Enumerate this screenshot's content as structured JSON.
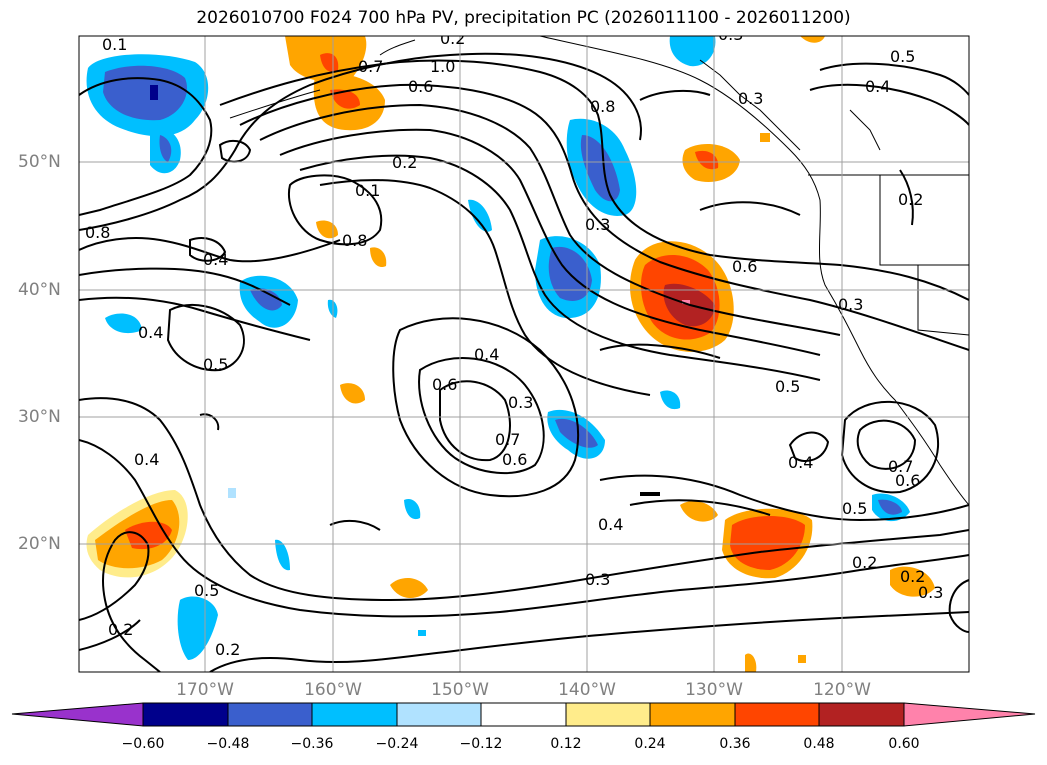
{
  "title": "2026010700 F024 700 hPa PV, precipitation PC (2026011100 - 2026011200)",
  "lat_labels": [
    "50°N",
    "40°N",
    "30°N",
    "20°N"
  ],
  "lon_labels": [
    "170°W",
    "160°W",
    "150°W",
    "140°W",
    "130°W",
    "120°W"
  ],
  "colorbar": {
    "ticks": [
      "−0.60",
      "−0.48",
      "−0.36",
      "−0.24",
      "−0.12",
      "0.12",
      "0.24",
      "0.36",
      "0.48",
      "0.60"
    ],
    "colors": [
      "#9932cc",
      "#00008b",
      "#3a5fcd",
      "#00bfff",
      "#b0e2ff",
      "#ffffff",
      "#ffec8b",
      "#ffa500",
      "#ff4500",
      "#b22222",
      "#ff82ab"
    ]
  },
  "contour_labels": [
    "0.1",
    "1.0",
    "0.7",
    "0.6",
    "0.3",
    "0.5",
    "0.4",
    "0.8",
    "0.2",
    "0.1",
    "0.8",
    "0.8",
    "0.2",
    "0.3",
    "0.6",
    "0.4",
    "0.4",
    "0.5",
    "0.3",
    "0.6",
    "0.4",
    "0.3",
    "0.7",
    "0.6",
    "0.5",
    "0.4",
    "0.4",
    "0.6",
    "0.7",
    "0.5",
    "0.4",
    "0.3",
    "0.2",
    "0.2",
    "0.3",
    "0.5",
    "0.2",
    "0.2",
    "0.3",
    "0.2"
  ]
}
